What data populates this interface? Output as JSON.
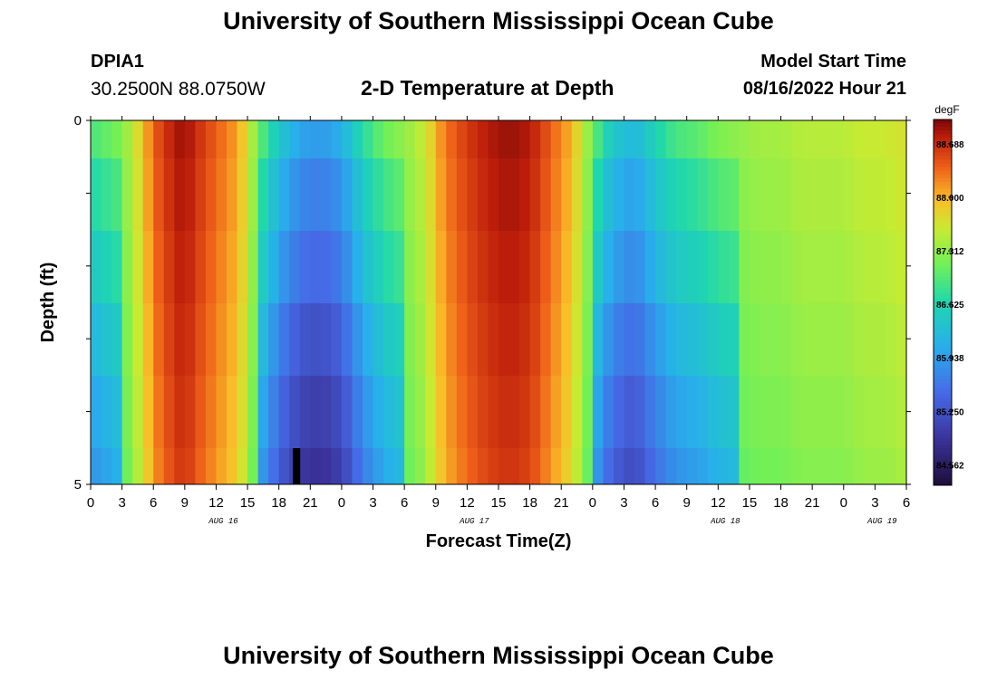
{
  "page": {
    "title": "University of Southern Mississippi Ocean Cube",
    "title_bottom": "University of Southern Mississippi Ocean Cube",
    "station_id": "DPIA1",
    "station_coords": "30.2500N  88.0750W",
    "subtitle": "2-D Temperature at Depth",
    "model_start_label": "Model Start Time",
    "model_start_value": "08/16/2022 Hour 21"
  },
  "chart_data": {
    "type": "heatmap",
    "title": "2-D Temperature at Depth",
    "xlabel": "Forecast Time(Z)",
    "ylabel": "Depth (ft)",
    "x_range_hours": [
      0,
      78
    ],
    "y_range_ft": [
      0,
      5
    ],
    "x_tick_labels": [
      "0",
      "3",
      "6",
      "9",
      "12",
      "15",
      "18",
      "21",
      "0",
      "3",
      "6",
      "9",
      "12",
      "15",
      "18",
      "21",
      "0",
      "3",
      "6",
      "9",
      "12",
      "15",
      "18",
      "21",
      "0",
      "3",
      "6"
    ],
    "y_tick_labels": [
      "0",
      "5"
    ],
    "date_labels": [
      {
        "text": "AUG 16",
        "hour": 12
      },
      {
        "text": "AUG 17",
        "hour": 36
      },
      {
        "text": "AUG 18",
        "hour": 60
      },
      {
        "text": "AUG 19",
        "hour": 75
      }
    ],
    "depth_layers_ft": [
      0.25,
      1.25,
      2.25,
      3.25,
      4.25,
      4.75
    ],
    "time_steps_per_hour": 1,
    "colorbar": {
      "unit": "degF",
      "min": 84.3,
      "max": 89.0,
      "tick_labels": [
        "88.688",
        "88.000",
        "87.312",
        "86.625",
        "85.938",
        "85.250",
        "84.562"
      ],
      "tick_values": [
        88.688,
        88.0,
        87.312,
        86.625,
        85.938,
        85.25,
        84.562
      ]
    },
    "surface_profile": {
      "hours": [
        0,
        3,
        5,
        6,
        8,
        9,
        10,
        12,
        14,
        15,
        16,
        18,
        20,
        22,
        24,
        26,
        28,
        30,
        32,
        33,
        34,
        36,
        38,
        40,
        42,
        44,
        46,
        47,
        48,
        49,
        50,
        51,
        52,
        53,
        54,
        56,
        58,
        60,
        62,
        64,
        66,
        68,
        70,
        72,
        74,
        76,
        78
      ],
      "values": [
        86.9,
        87.2,
        87.9,
        88.4,
        88.8,
        88.9,
        88.7,
        88.4,
        88.1,
        87.7,
        87.1,
        86.4,
        86.0,
        85.9,
        86.1,
        86.7,
        87.1,
        87.3,
        87.6,
        88.0,
        88.3,
        88.6,
        88.8,
        88.9,
        88.8,
        88.4,
        88.0,
        87.6,
        87.1,
        86.7,
        86.4,
        86.3,
        86.2,
        86.4,
        86.6,
        86.9,
        87.0,
        87.2,
        87.3,
        87.4,
        87.4,
        87.5,
        87.5,
        87.5,
        87.6,
        87.6,
        87.7
      ]
    },
    "depth_adjustments": [
      {
        "layer": 0,
        "warm_shift": 0.0,
        "cool_shift": 0.0
      },
      {
        "layer": 1,
        "warm_shift": -0.05,
        "cool_shift": -0.25
      },
      {
        "layer": 2,
        "warm_shift": -0.1,
        "cool_shift": -0.45
      },
      {
        "layer": 3,
        "warm_shift": -0.15,
        "cool_shift": -0.7
      },
      {
        "layer": 4,
        "warm_shift": -0.2,
        "cool_shift": -0.9
      },
      {
        "layer": 5,
        "warm_shift": -0.25,
        "cool_shift": -1.05
      }
    ],
    "missing_cell": {
      "hour": 19,
      "layer": 5
    }
  }
}
